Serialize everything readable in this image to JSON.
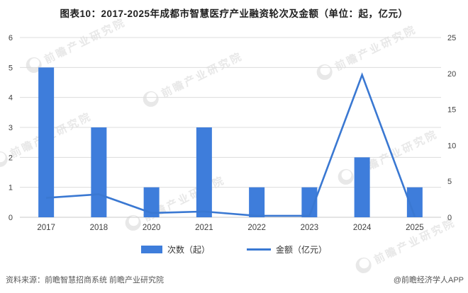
{
  "title": "图表10：2017-2025年成都市智慧医疗产业融资轮次及金额（单位：起，亿元）",
  "chart_data": {
    "type": "bar",
    "subtype": "bar+line dual axis",
    "categories": [
      "2017",
      "2018",
      "2020",
      "2021",
      "2022",
      "2023",
      "2024",
      "2025"
    ],
    "series": [
      {
        "name": "次数（起）",
        "type": "bar",
        "axis": "left",
        "values": [
          5,
          3,
          1,
          3,
          1,
          1,
          2,
          1
        ],
        "color": "#3E7DDB"
      },
      {
        "name": "金额（亿元）",
        "type": "line",
        "axis": "right",
        "values": [
          2.7,
          3.2,
          0.6,
          0.8,
          0.2,
          0.2,
          19.8,
          0.1
        ],
        "color": "#3A78D2"
      }
    ],
    "title": "图表10：2017-2025年成都市智慧医疗产业融资轮次及金额（单位：起，亿元）",
    "xlabel": "",
    "ylabel_left": "次数（起）",
    "ylabel_right": "金额（亿元）",
    "left_axis": {
      "min": 0,
      "max": 6,
      "step": 1,
      "ticks": [
        0,
        1,
        2,
        3,
        4,
        5,
        6
      ]
    },
    "right_axis": {
      "min": 0,
      "max": 25,
      "step": 5,
      "ticks": [
        0,
        5,
        10,
        15,
        20,
        25
      ]
    },
    "grid": true,
    "legend_position": "bottom",
    "grid_color": "#DCDCDC",
    "axis_text_color": "#404040"
  },
  "footer": {
    "source": "资料来源：前瞻智慧招商系统  前瞻产业研究院",
    "credit": "@前瞻经济学人APP"
  },
  "watermark": {
    "text": "前瞻产业研究院",
    "color": "#E4E4E4"
  }
}
